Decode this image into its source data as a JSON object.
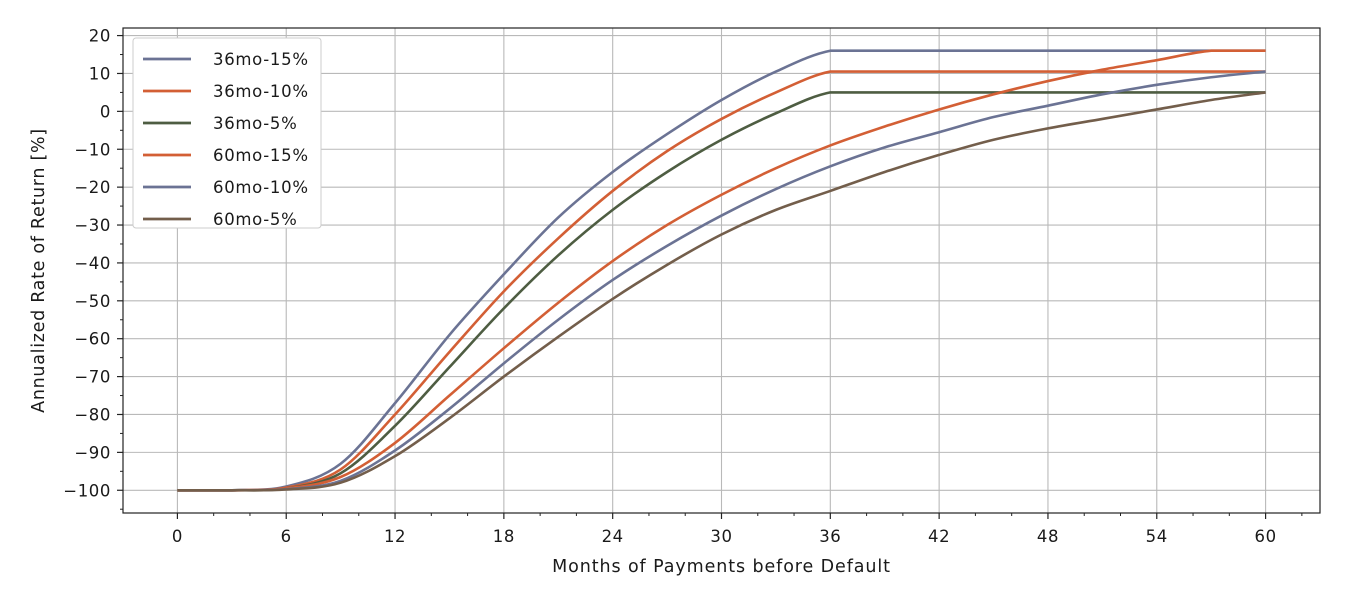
{
  "chart_data": {
    "type": "line",
    "title": "",
    "xlabel": "Months of Payments before Default",
    "ylabel": "Annualized Rate of Return [%]",
    "xlim": [
      -3,
      63
    ],
    "ylim": [
      -106,
      22
    ],
    "xticks": [
      0,
      6,
      12,
      18,
      24,
      30,
      36,
      42,
      48,
      54,
      60
    ],
    "xtick_labels": [
      "0",
      "6",
      "12",
      "18",
      "24",
      "30",
      "36",
      "42",
      "48",
      "54",
      "60"
    ],
    "yticks": [
      20,
      10,
      0,
      -10,
      -20,
      -30,
      -40,
      -50,
      -60,
      -70,
      -80,
      -90,
      -100
    ],
    "ytick_labels": [
      "20",
      "10",
      "0",
      "−10",
      "−20",
      "−30",
      "−40",
      "−50",
      "−60",
      "−70",
      "−80",
      "−90",
      "−100"
    ],
    "grid": true,
    "legend_position": "upper-left",
    "x": [
      0,
      3,
      6,
      9,
      12,
      15,
      18,
      21,
      24,
      27,
      30,
      33,
      36,
      39,
      42,
      45,
      48,
      51,
      54,
      57,
      60
    ],
    "series": [
      {
        "name": "36mo-15%",
        "color": "#6b7394",
        "values": [
          -100,
          -100,
          -99,
          -93,
          -77,
          -59,
          -43,
          -28,
          -16,
          -6,
          3,
          10.5,
          16,
          16,
          16,
          16,
          16,
          16,
          16,
          16,
          16
        ]
      },
      {
        "name": "36mo-10%",
        "color": "#d35f35",
        "values": [
          -100,
          -100,
          -99.3,
          -94.5,
          -80,
          -63.5,
          -47.5,
          -33.5,
          -21,
          -10.5,
          -2,
          5,
          10.5,
          10.5,
          10.5,
          10.5,
          10.5,
          10.5,
          10.5,
          10.5,
          10.5
        ]
      },
      {
        "name": "36mo-5%",
        "color": "#4e5d42",
        "values": [
          -100,
          -100,
          -99.5,
          -95.5,
          -83,
          -67.5,
          -52,
          -38,
          -26,
          -16,
          -7.5,
          -0.5,
          5,
          5,
          5,
          5,
          5,
          5,
          5,
          5,
          5
        ]
      },
      {
        "name": "60mo-15%",
        "color": "#d35f35",
        "values": [
          -100,
          -100,
          -99.5,
          -96.5,
          -87.5,
          -75,
          -62.5,
          -50.5,
          -39.5,
          -30,
          -22,
          -15,
          -9,
          -4,
          0.5,
          4.5,
          8,
          11,
          13.5,
          16,
          16
        ]
      },
      {
        "name": "60mo-10%",
        "color": "#6b7394",
        "values": [
          -100,
          -100,
          -99.7,
          -97.5,
          -89.5,
          -78.5,
          -66.5,
          -55,
          -44.5,
          -35.5,
          -27.5,
          -20.5,
          -14.5,
          -9.5,
          -5.5,
          -1.5,
          1.5,
          4.5,
          7,
          9,
          10.5
        ]
      },
      {
        "name": "60mo-5%",
        "color": "#735e4b",
        "values": [
          -100,
          -100,
          -99.8,
          -98,
          -91,
          -81,
          -70,
          -59.5,
          -49.5,
          -40.5,
          -32.5,
          -26,
          -21,
          -16,
          -11.5,
          -7.5,
          -4.5,
          -2,
          0.5,
          3,
          5
        ]
      }
    ]
  }
}
